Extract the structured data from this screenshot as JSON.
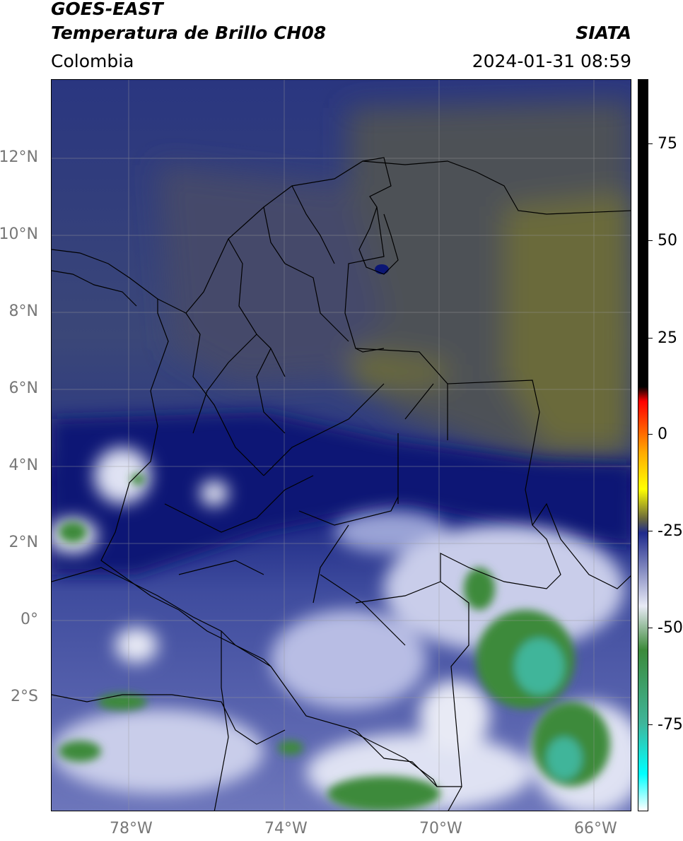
{
  "header": {
    "title_line1": "GOES-EAST",
    "title_line2": "Temperatura de Brillo CH08",
    "source": "SIATA",
    "region": "Colombia",
    "timestamp": "2024-01-31 08:59"
  },
  "map": {
    "lat_ticks": [
      "12°N",
      "10°N",
      "8°N",
      "6°N",
      "4°N",
      "2°N",
      "0°",
      "2°S"
    ],
    "lon_ticks": [
      "78°W",
      "74°W",
      "70°W",
      "66°W"
    ],
    "palette": {
      "dark_navy": "#0b1675",
      "navy": "#1e2a8c",
      "slate": "#3a4a7a",
      "olive_gray": "#4e5156",
      "olive": "#6b6a3a",
      "light_blue": "#9aa3d6",
      "white": "#f2f3fa",
      "green": "#3c8a3a",
      "teal": "#3fb59a"
    }
  },
  "colorbar": {
    "ticks": [
      "75",
      "50",
      "25",
      "0",
      "-25",
      "-50",
      "-75"
    ],
    "stops": [
      "#000000",
      "#000000",
      "#ff0000",
      "#ffaa00",
      "#ffff00",
      "#6b6a3a",
      "#1e2a8c",
      "#e8eaf5",
      "#3c8a3a",
      "#3fb59a",
      "#00ffff",
      "#ffffff"
    ]
  }
}
